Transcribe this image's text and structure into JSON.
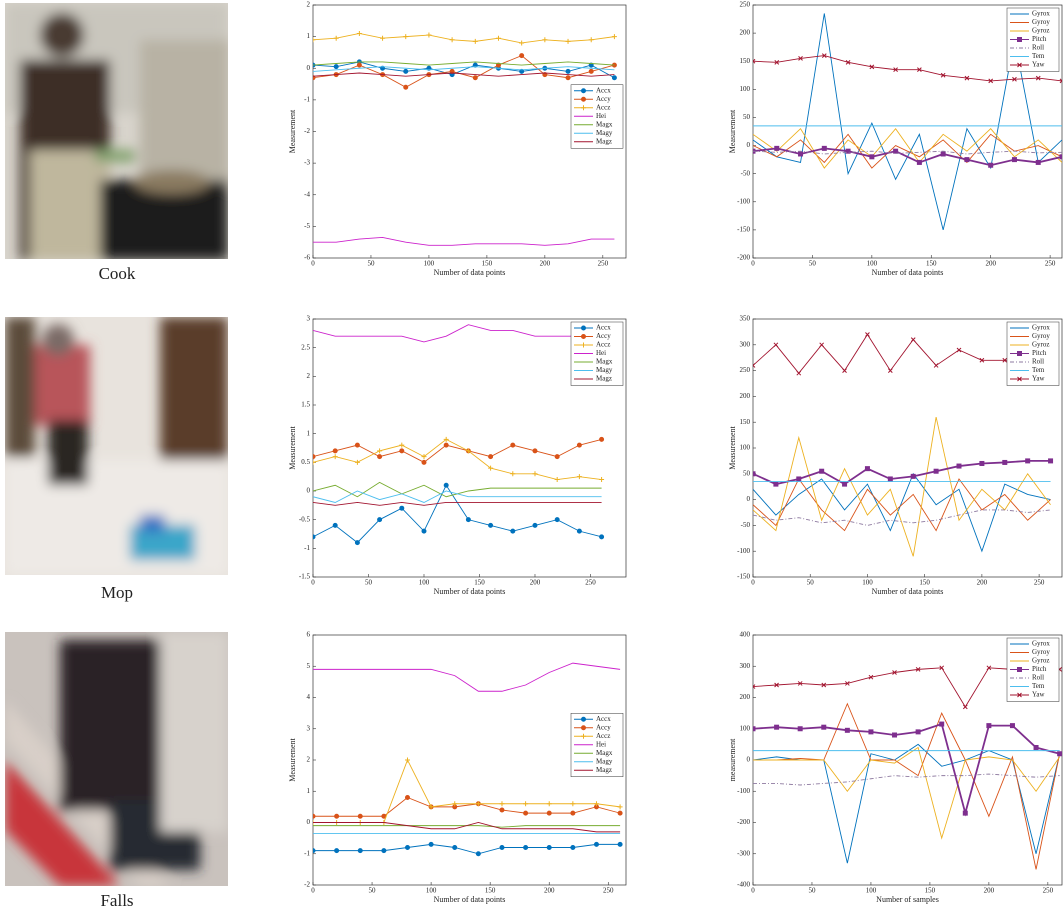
{
  "panels": [
    "Cook",
    "Mop",
    "Falls"
  ],
  "chart_data": [
    {
      "type": "line",
      "xlabel": "Number of data points",
      "ylabel": "Measurement",
      "legend": "center right",
      "xlim": [
        0,
        270
      ],
      "ylim": [
        -6,
        2
      ],
      "xticks": [
        0,
        50,
        100,
        150,
        200,
        250
      ],
      "yticks": [
        -6,
        -5,
        -4,
        -3,
        -2,
        -1,
        0,
        1,
        2
      ],
      "x": [
        0,
        20,
        40,
        60,
        80,
        100,
        120,
        140,
        160,
        180,
        200,
        220,
        240,
        260
      ],
      "series": [
        {
          "name": "Accx",
          "color": "#0072bd",
          "marker": "o",
          "values": [
            0.1,
            0.05,
            0.2,
            0.0,
            -0.1,
            0.0,
            -0.2,
            0.1,
            0.0,
            -0.1,
            0.0,
            -0.1,
            0.1,
            -0.3
          ]
        },
        {
          "name": "Accy",
          "color": "#d95319",
          "marker": "o",
          "values": [
            -0.3,
            -0.2,
            0.1,
            -0.2,
            -0.6,
            -0.2,
            -0.1,
            -0.3,
            0.1,
            0.4,
            -0.2,
            -0.3,
            -0.1,
            0.1
          ]
        },
        {
          "name": "Accz",
          "color": "#edb120",
          "marker": "+",
          "values": [
            0.9,
            0.95,
            1.1,
            0.95,
            1.0,
            1.05,
            0.9,
            0.85,
            0.95,
            0.8,
            0.9,
            0.85,
            0.9,
            1.0
          ]
        },
        {
          "name": "Hei",
          "color": "#cc22cc",
          "values": [
            -5.5,
            -5.5,
            -5.4,
            -5.35,
            -5.5,
            -5.6,
            -5.6,
            -5.55,
            -5.55,
            -5.55,
            -5.6,
            -5.55,
            -5.4,
            -5.4
          ]
        },
        {
          "name": "Magx",
          "color": "#77ac30",
          "values": [
            0.1,
            0.15,
            0.2,
            0.2,
            0.15,
            0.1,
            0.15,
            0.2,
            0.15,
            0.1,
            0.15,
            0.2,
            0.15,
            0.1
          ]
        },
        {
          "name": "Magy",
          "color": "#4dbeee",
          "values": [
            -0.1,
            -0.05,
            0.0,
            0.05,
            0.0,
            -0.05,
            0.0,
            0.05,
            0.0,
            -0.05,
            0.0,
            0.05,
            0.0,
            -0.05
          ]
        },
        {
          "name": "Magz",
          "color": "#a2142f",
          "values": [
            -0.25,
            -0.2,
            -0.15,
            -0.2,
            -0.25,
            -0.2,
            -0.15,
            -0.2,
            -0.25,
            -0.2,
            -0.15,
            -0.2,
            -0.25,
            -0.2
          ]
        }
      ]
    },
    {
      "type": "line",
      "xlabel": "Number of data points",
      "ylabel": "Measurement",
      "legend": "upper right",
      "xlim": [
        0,
        260
      ],
      "ylim": [
        -200,
        250
      ],
      "xticks": [
        0,
        50,
        100,
        150,
        200,
        250
      ],
      "yticks": [
        -200,
        -150,
        -100,
        -50,
        0,
        50,
        100,
        150,
        200,
        250
      ],
      "x": [
        0,
        20,
        40,
        60,
        80,
        100,
        120,
        140,
        160,
        180,
        200,
        220,
        240,
        260
      ],
      "series": [
        {
          "name": "Gyrox",
          "color": "#0072bd",
          "values": [
            10,
            -20,
            -30,
            235,
            -50,
            40,
            -60,
            20,
            -150,
            30,
            -40,
            190,
            -30,
            10
          ]
        },
        {
          "name": "Gyroy",
          "color": "#d95319",
          "values": [
            0,
            -20,
            10,
            -30,
            20,
            -40,
            0,
            -20,
            10,
            -30,
            20,
            -10,
            0,
            -20
          ]
        },
        {
          "name": "Gyroz",
          "color": "#edb120",
          "values": [
            20,
            -10,
            30,
            -40,
            10,
            -20,
            30,
            -30,
            20,
            -10,
            30,
            -20,
            10,
            -30
          ]
        },
        {
          "name": "Pitch",
          "color": "#7e2f8e",
          "marker": "s",
          "values": [
            -10,
            -5,
            -15,
            -5,
            -10,
            -20,
            -10,
            -30,
            -15,
            -25,
            -35,
            -25,
            -30,
            -20
          ]
        },
        {
          "name": "Roll",
          "color": "#8e7aa0",
          "style": "dashdot",
          "values": [
            -10,
            -12,
            -10,
            -15,
            -12,
            -10,
            -14,
            -12,
            -10,
            -15,
            -12,
            -10,
            -13,
            -12
          ]
        },
        {
          "name": "Tem",
          "color": "#4dbeee",
          "values": [
            35,
            35,
            35,
            35,
            35,
            35,
            35,
            35,
            35,
            35,
            35,
            35,
            35,
            35
          ]
        },
        {
          "name": "Yaw",
          "color": "#a2142f",
          "marker": "x",
          "values": [
            150,
            148,
            155,
            160,
            148,
            140,
            135,
            135,
            125,
            120,
            115,
            118,
            120,
            115
          ]
        }
      ]
    },
    {
      "type": "line",
      "xlabel": "Number of data points",
      "ylabel": "Measurement",
      "legend": "upper right",
      "xlim": [
        0,
        282
      ],
      "ylim": [
        -1.5,
        3
      ],
      "xticks": [
        0,
        50,
        100,
        150,
        200,
        250
      ],
      "yticks": [
        -1.5,
        -1,
        -0.5,
        0,
        0.5,
        1,
        1.5,
        2,
        2.5,
        3
      ],
      "x": [
        0,
        20,
        40,
        60,
        80,
        100,
        120,
        140,
        160,
        180,
        200,
        220,
        240,
        260
      ],
      "series": [
        {
          "name": "Accx",
          "color": "#0072bd",
          "marker": "o",
          "values": [
            -0.8,
            -0.6,
            -0.9,
            -0.5,
            -0.3,
            -0.7,
            0.1,
            -0.5,
            -0.6,
            -0.7,
            -0.6,
            -0.5,
            -0.7,
            -0.8
          ]
        },
        {
          "name": "Accy",
          "color": "#d95319",
          "marker": "o",
          "values": [
            0.6,
            0.7,
            0.8,
            0.6,
            0.7,
            0.5,
            0.8,
            0.7,
            0.6,
            0.8,
            0.7,
            0.6,
            0.8,
            0.9
          ]
        },
        {
          "name": "Accz",
          "color": "#edb120",
          "marker": "+",
          "values": [
            0.5,
            0.6,
            0.5,
            0.7,
            0.8,
            0.6,
            0.9,
            0.7,
            0.4,
            0.3,
            0.3,
            0.2,
            0.25,
            0.2
          ]
        },
        {
          "name": "Hei",
          "color": "#cc22cc",
          "values": [
            2.8,
            2.7,
            2.7,
            2.7,
            2.7,
            2.6,
            2.7,
            2.9,
            2.8,
            2.8,
            2.7,
            2.7,
            2.7,
            2.7
          ]
        },
        {
          "name": "Magx",
          "color": "#77ac30",
          "values": [
            0.0,
            0.1,
            -0.1,
            0.15,
            -0.05,
            0.1,
            -0.1,
            0.0,
            0.05,
            0.05,
            0.05,
            0.05,
            0.05,
            0.05
          ]
        },
        {
          "name": "Magy",
          "color": "#4dbeee",
          "values": [
            -0.1,
            -0.2,
            0.0,
            -0.15,
            -0.05,
            -0.2,
            0.0,
            -0.1,
            -0.1,
            -0.1,
            -0.1,
            -0.1,
            -0.1,
            -0.1
          ]
        },
        {
          "name": "Magz",
          "color": "#a2142f",
          "values": [
            -0.2,
            -0.25,
            -0.2,
            -0.25,
            -0.2,
            -0.25,
            -0.2,
            -0.2,
            -0.2,
            -0.2,
            -0.2,
            -0.2,
            -0.2,
            -0.2
          ]
        }
      ]
    },
    {
      "type": "line",
      "xlabel": "Number of data points",
      "ylabel": "Measurement",
      "legend": "upper right",
      "xlim": [
        0,
        270
      ],
      "ylim": [
        -150,
        350
      ],
      "xticks": [
        0,
        50,
        100,
        150,
        200,
        250
      ],
      "yticks": [
        -150,
        -100,
        -50,
        0,
        50,
        100,
        150,
        200,
        250,
        300,
        350
      ],
      "x": [
        0,
        20,
        40,
        60,
        80,
        100,
        120,
        140,
        160,
        180,
        200,
        220,
        240,
        260
      ],
      "series": [
        {
          "name": "Gyrox",
          "color": "#0072bd",
          "values": [
            20,
            -30,
            10,
            40,
            -20,
            30,
            -60,
            50,
            -10,
            20,
            -100,
            30,
            10,
            0
          ]
        },
        {
          "name": "Gyroy",
          "color": "#d95319",
          "values": [
            -10,
            -50,
            40,
            -20,
            -60,
            20,
            -30,
            10,
            -60,
            40,
            -20,
            10,
            -40,
            0
          ]
        },
        {
          "name": "Gyroz",
          "color": "#edb120",
          "values": [
            -20,
            -60,
            120,
            -40,
            60,
            -30,
            20,
            -110,
            160,
            -40,
            20,
            -20,
            50,
            -10
          ]
        },
        {
          "name": "Pitch",
          "color": "#7e2f8e",
          "marker": "s",
          "values": [
            50,
            30,
            40,
            55,
            30,
            60,
            40,
            45,
            55,
            65,
            70,
            72,
            75,
            75
          ]
        },
        {
          "name": "Roll",
          "color": "#8e7aa0",
          "style": "dashdot",
          "values": [
            -30,
            -40,
            -35,
            -45,
            -40,
            -50,
            -40,
            -45,
            -40,
            -30,
            -20,
            -20,
            -25,
            -20
          ]
        },
        {
          "name": "Tem",
          "color": "#4dbeee",
          "values": [
            35,
            35,
            35,
            35,
            35,
            35,
            35,
            35,
            35,
            35,
            35,
            35,
            35,
            35
          ]
        },
        {
          "name": "Yaw",
          "color": "#a2142f",
          "marker": "x",
          "values": [
            260,
            300,
            245,
            300,
            250,
            320,
            250,
            310,
            260,
            290,
            270,
            270,
            270,
            270
          ]
        }
      ]
    },
    {
      "type": "line",
      "xlabel": "Number of data points",
      "ylabel": "Measurement",
      "legend": "center right",
      "xlim": [
        0,
        265
      ],
      "ylim": [
        -2,
        6
      ],
      "xticks": [
        0,
        50,
        100,
        150,
        200,
        250
      ],
      "yticks": [
        -2,
        -1,
        0,
        1,
        2,
        3,
        4,
        5,
        6
      ],
      "x": [
        0,
        20,
        40,
        60,
        80,
        100,
        120,
        140,
        160,
        180,
        200,
        220,
        240,
        260
      ],
      "series": [
        {
          "name": "Accx",
          "color": "#0072bd",
          "marker": "o",
          "values": [
            -0.9,
            -0.9,
            -0.9,
            -0.9,
            -0.8,
            -0.7,
            -0.8,
            -1.0,
            -0.8,
            -0.8,
            -0.8,
            -0.8,
            -0.7,
            -0.7
          ]
        },
        {
          "name": "Accy",
          "color": "#d95319",
          "marker": "o",
          "values": [
            0.2,
            0.2,
            0.2,
            0.2,
            0.8,
            0.5,
            0.5,
            0.6,
            0.4,
            0.3,
            0.3,
            0.3,
            0.5,
            0.3
          ]
        },
        {
          "name": "Accz",
          "color": "#edb120",
          "marker": "+",
          "values": [
            0.0,
            0.0,
            0.0,
            0.0,
            2.0,
            0.5,
            0.6,
            0.6,
            0.6,
            0.6,
            0.6,
            0.6,
            0.6,
            0.5
          ]
        },
        {
          "name": "Hei",
          "color": "#cc22cc",
          "values": [
            4.9,
            4.9,
            4.9,
            4.9,
            4.9,
            4.9,
            4.7,
            4.2,
            4.2,
            4.4,
            4.8,
            5.1,
            5.0,
            4.9
          ]
        },
        {
          "name": "Magx",
          "color": "#77ac30",
          "values": [
            -0.1,
            -0.1,
            -0.1,
            -0.1,
            -0.1,
            -0.1,
            -0.1,
            -0.1,
            -0.15,
            -0.1,
            -0.1,
            -0.1,
            -0.1,
            -0.1
          ]
        },
        {
          "name": "Magy",
          "color": "#4dbeee",
          "values": [
            -0.35,
            -0.35,
            -0.35,
            -0.35,
            -0.35,
            -0.35,
            -0.35,
            -0.35,
            -0.35,
            -0.35,
            -0.35,
            -0.35,
            -0.35,
            -0.35
          ]
        },
        {
          "name": "Magz",
          "color": "#a2142f",
          "values": [
            0,
            0,
            0,
            0,
            -0.1,
            -0.2,
            -0.2,
            0.0,
            -0.2,
            -0.2,
            -0.2,
            -0.2,
            -0.3,
            -0.3
          ]
        }
      ]
    },
    {
      "type": "line",
      "xlabel": "Number of samples",
      "ylabel": "measurement",
      "legend": "upper right",
      "xlim": [
        0,
        262
      ],
      "ylim": [
        -400,
        400
      ],
      "xticks": [
        0,
        50,
        100,
        150,
        200,
        250
      ],
      "yticks": [
        -400,
        -300,
        -200,
        -100,
        0,
        100,
        200,
        300,
        400
      ],
      "x": [
        0,
        20,
        40,
        60,
        80,
        100,
        120,
        140,
        160,
        180,
        200,
        220,
        240,
        260
      ],
      "series": [
        {
          "name": "Gyrox",
          "color": "#0072bd",
          "values": [
            0,
            10,
            0,
            0,
            -330,
            20,
            0,
            50,
            -20,
            0,
            30,
            0,
            -300,
            20
          ]
        },
        {
          "name": "Gyroy",
          "color": "#d95319",
          "values": [
            0,
            0,
            5,
            0,
            180,
            0,
            0,
            -50,
            150,
            0,
            -180,
            10,
            -350,
            20
          ]
        },
        {
          "name": "Gyroz",
          "color": "#edb120",
          "values": [
            0,
            0,
            0,
            0,
            -100,
            0,
            -10,
            40,
            -250,
            0,
            10,
            0,
            -100,
            10
          ]
        },
        {
          "name": "Pitch",
          "color": "#7e2f8e",
          "marker": "s",
          "values": [
            100,
            105,
            100,
            105,
            95,
            90,
            80,
            90,
            115,
            -170,
            110,
            110,
            40,
            20
          ]
        },
        {
          "name": "Roll",
          "color": "#8e7aa0",
          "style": "dashdot",
          "values": [
            -75,
            -75,
            -80,
            -75,
            -70,
            -60,
            -50,
            -55,
            -50,
            -50,
            -45,
            -50,
            -55,
            -50
          ]
        },
        {
          "name": "Tem",
          "color": "#4dbeee",
          "values": [
            30,
            30,
            30,
            30,
            30,
            30,
            30,
            30,
            30,
            30,
            30,
            30,
            30,
            30
          ]
        },
        {
          "name": "Yaw",
          "color": "#a2142f",
          "marker": "x",
          "values": [
            235,
            240,
            245,
            240,
            245,
            265,
            280,
            290,
            295,
            170,
            295,
            290,
            270,
            290
          ]
        }
      ]
    }
  ]
}
